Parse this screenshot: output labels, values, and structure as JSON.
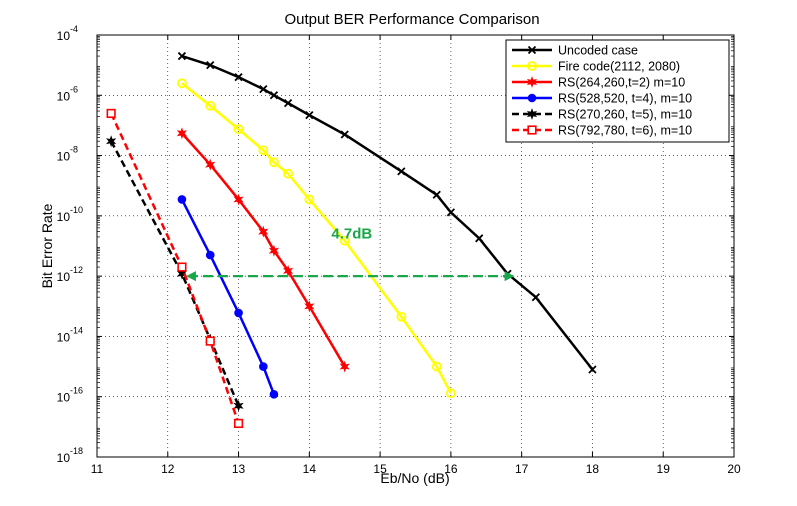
{
  "chart_data": {
    "type": "line",
    "title": "Output BER Performance Comparison",
    "xlabel": "Eb/No (dB)",
    "ylabel": "Bit Error Rate",
    "xlim": [
      11,
      20
    ],
    "ylim_exponent": [
      -18,
      -4
    ],
    "y_scale": "log",
    "grid": true,
    "legend_position": "top-right",
    "x_ticks": [
      11,
      12,
      13,
      14,
      15,
      16,
      17,
      18,
      19,
      20
    ],
    "y_tick_base": "10",
    "y_tick_exponents": [
      "-18",
      "-16",
      "-14",
      "-12",
      "-10",
      "-8",
      "-6",
      "-4"
    ],
    "series": [
      {
        "name": "Uncoded case",
        "color": "#000000",
        "marker": "x",
        "dash": "solid",
        "x": [
          12.2,
          12.6,
          13.0,
          13.35,
          13.5,
          13.7,
          14.0,
          14.5,
          15.3,
          15.8,
          16.0,
          16.4,
          16.8,
          17.2,
          18.0
        ],
        "y": [
          2e-05,
          1e-05,
          4e-06,
          1.6e-06,
          1e-06,
          5.5e-07,
          2.2e-07,
          5e-08,
          3e-09,
          5e-10,
          1.3e-10,
          1.8e-11,
          1.2e-12,
          2e-13,
          8e-16
        ]
      },
      {
        "name": "Fire code(2112, 2080)",
        "color": "#ffff00",
        "marker": "o",
        "dash": "solid",
        "x": [
          12.2,
          12.6,
          13.0,
          13.35,
          13.5,
          13.7,
          14.0,
          14.5,
          15.3,
          15.8,
          16.0
        ],
        "y": [
          2.5e-06,
          4.5e-07,
          7.5e-08,
          1.5e-08,
          6e-09,
          2.5e-09,
          3.5e-10,
          1.5e-11,
          4.5e-14,
          1e-15,
          1.3e-16
        ]
      },
      {
        "name": "RS(264,260,t=2) m=10",
        "color": "#ff0000",
        "marker": "star",
        "dash": "solid",
        "x": [
          12.2,
          12.6,
          13.0,
          13.35,
          13.5,
          13.7,
          14.0,
          14.5
        ],
        "y": [
          5.5e-08,
          5e-09,
          3.5e-10,
          3e-11,
          7e-12,
          1.5e-12,
          1e-13,
          1e-15
        ]
      },
      {
        "name": "RS(528,520, t=4), m=10",
        "color": "#0000ff",
        "marker": "filled-circle",
        "dash": "solid",
        "x": [
          12.2,
          12.6,
          13.0,
          13.35,
          13.5
        ],
        "y": [
          3.5e-10,
          5e-12,
          6e-14,
          1e-15,
          1.2e-16
        ]
      },
      {
        "name": "RS(270,260, t=5), m=10",
        "color": "#000000",
        "marker": "star",
        "dash": "dashed",
        "x": [
          11.2,
          12.2,
          12.6,
          13.0
        ],
        "y": [
          3e-08,
          1.2e-12,
          8e-15,
          5e-17
        ]
      },
      {
        "name": "RS(792,780, t=6), m=10",
        "color": "#ff0000",
        "marker": "square",
        "dash": "dashed",
        "x": [
          11.2,
          12.2,
          12.6,
          13.0
        ],
        "y": [
          2.5e-07,
          2e-12,
          7e-15,
          1.3e-17
        ]
      }
    ],
    "annotation": {
      "text": "4.7dB",
      "color": "#1aa64a",
      "arrow_from_x": 12.2,
      "arrow_to_x": 16.9,
      "arrow_y": 1e-12,
      "label_x": 14.6,
      "label_y": 1.8e-11
    }
  }
}
